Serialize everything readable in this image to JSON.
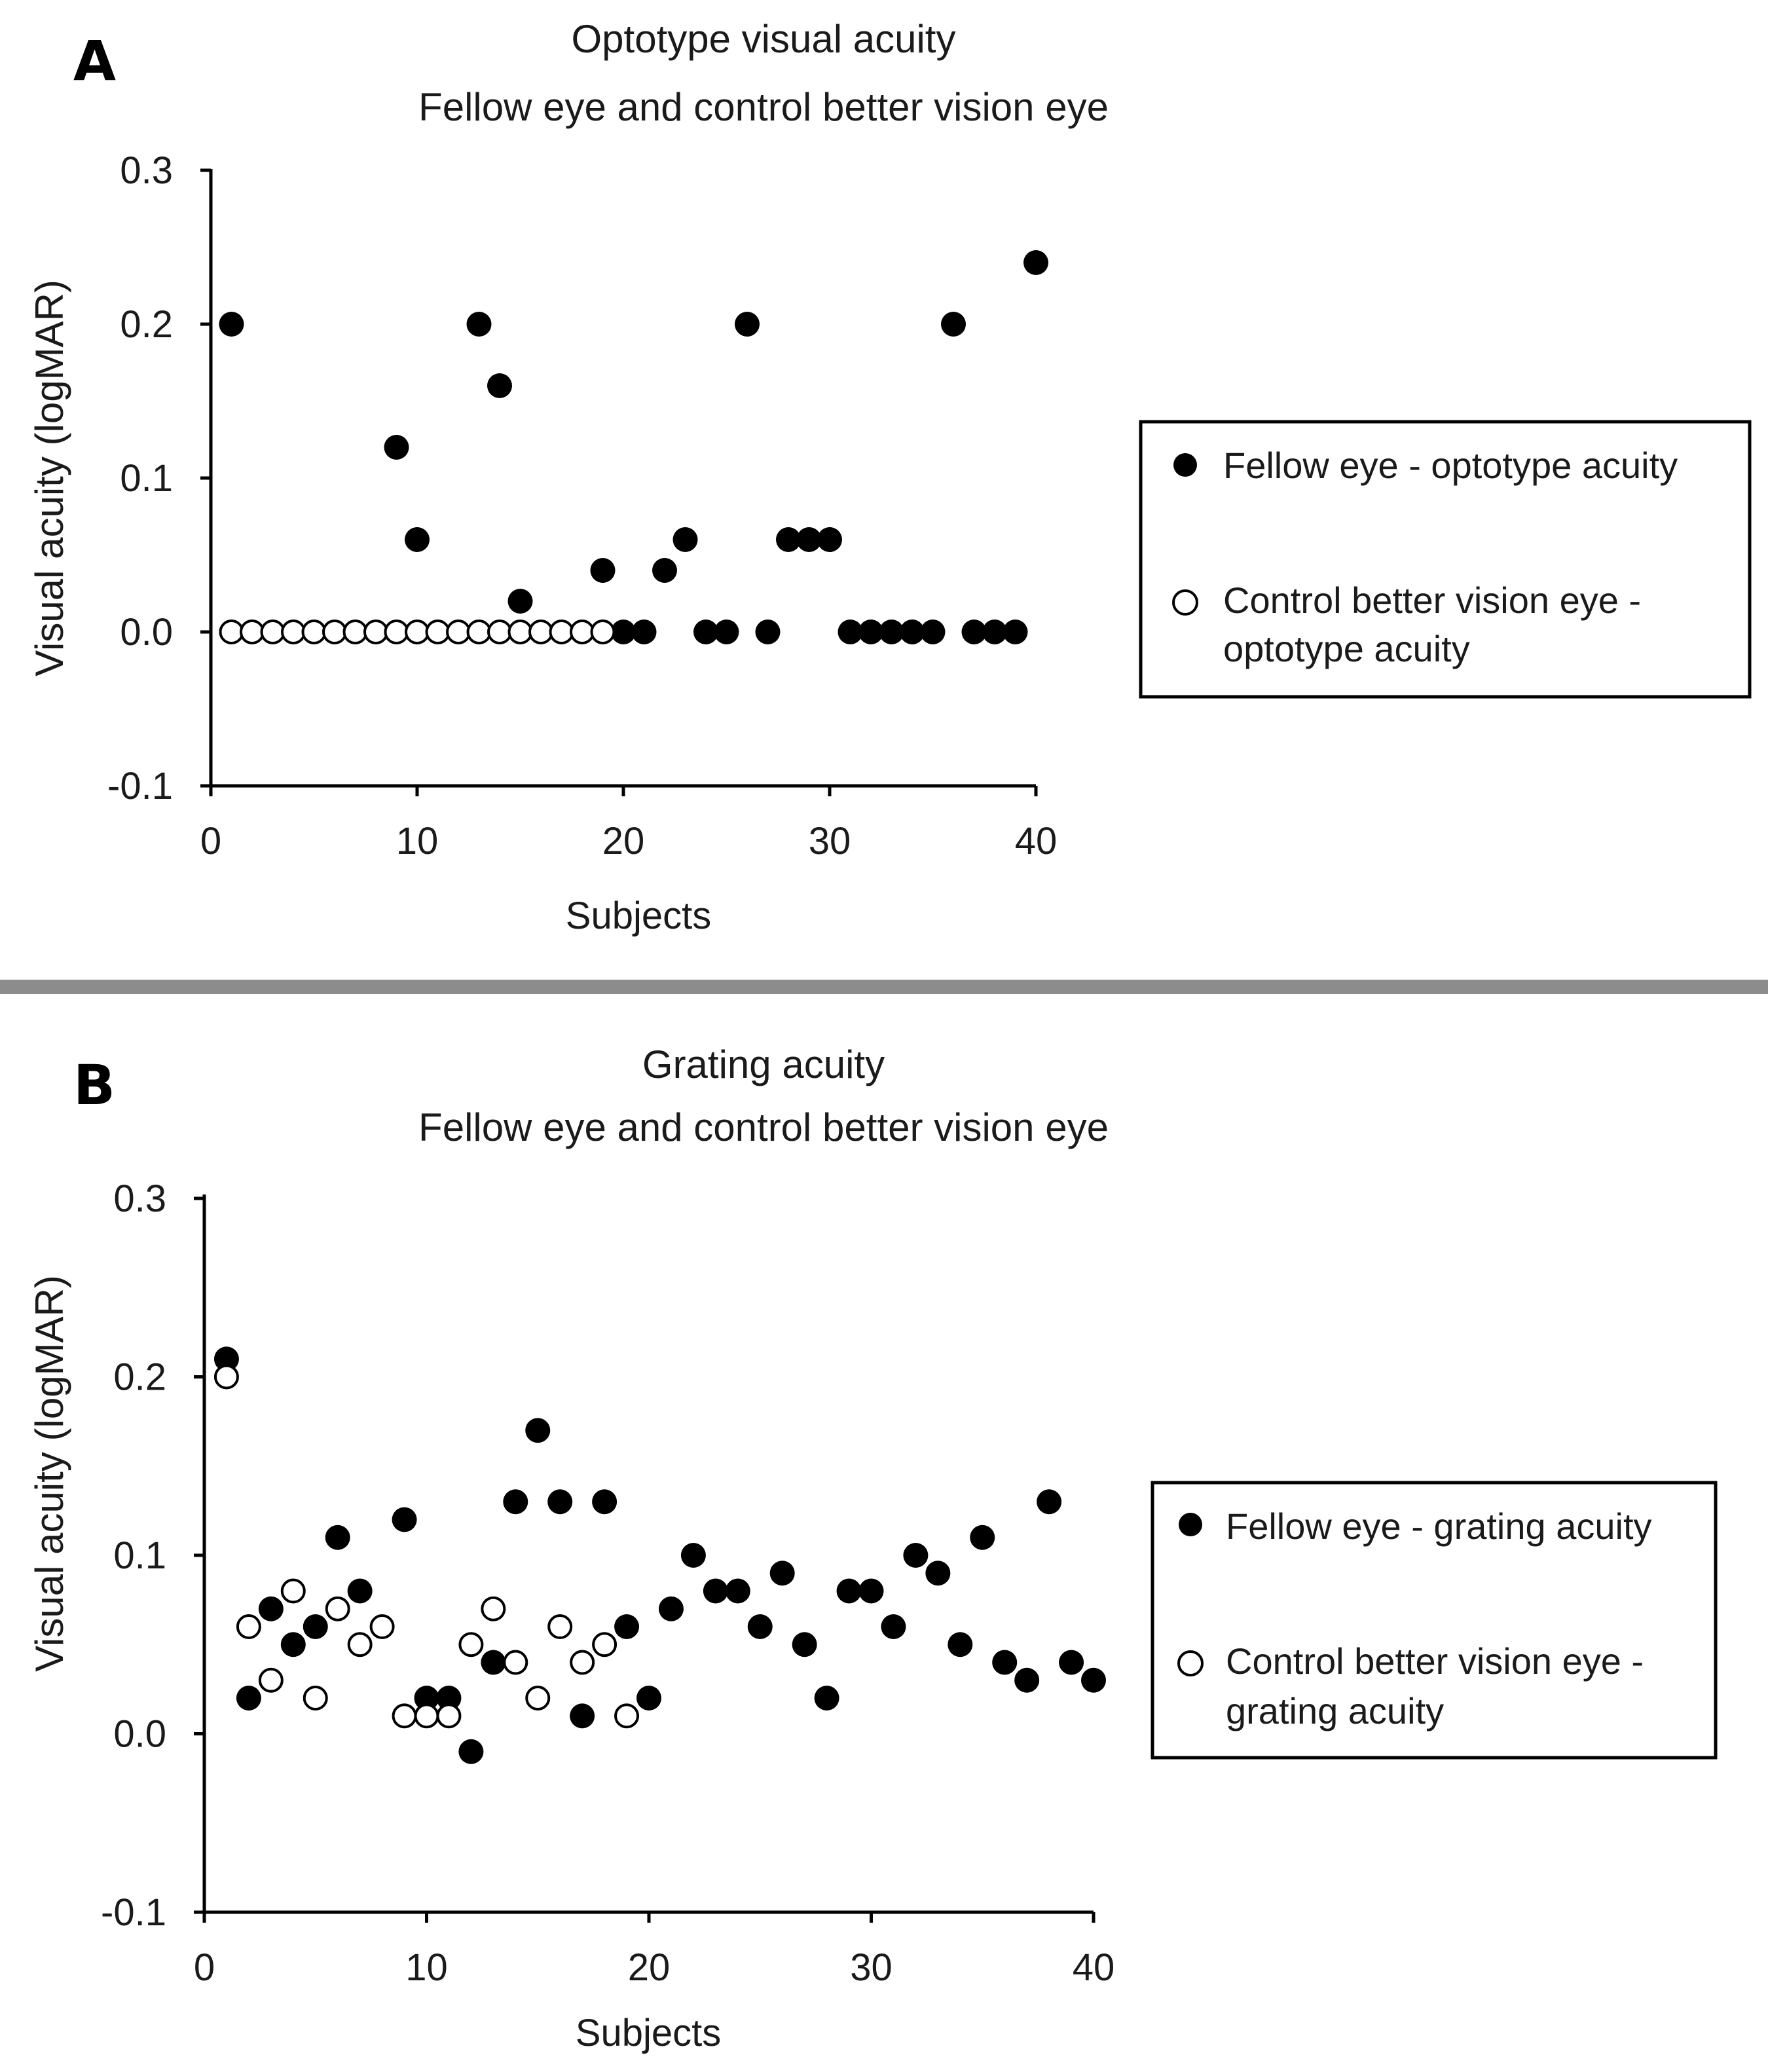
{
  "chart_data": [
    {
      "type": "scatter",
      "panel_label": "A",
      "title": "Optotype visual acuity",
      "subtitle": "Fellow eye and control better vision eye",
      "xlabel": "Subjects",
      "ylabel": "Visual acuity (logMAR)",
      "xlim": [
        0,
        40
      ],
      "ylim": [
        -0.1,
        0.3
      ],
      "xticks": [
        0,
        10,
        20,
        30,
        40
      ],
      "xtick_labels": [
        "0",
        "10",
        "20",
        "30",
        "40"
      ],
      "yticks": [
        -0.1,
        0.0,
        0.1,
        0.2,
        0.3
      ],
      "ytick_labels": [
        "-0.1",
        "0.0",
        "0.1",
        "0.2",
        "0.3"
      ],
      "legend_placement": "right",
      "series": [
        {
          "name": "Fellow eye - optotype acuity",
          "marker": "filled-circle",
          "points": [
            [
              1,
              0.2
            ],
            [
              9,
              0.12
            ],
            [
              10,
              0.06
            ],
            [
              13,
              0.2
            ],
            [
              14,
              0.16
            ],
            [
              15,
              0.02
            ],
            [
              19,
              0.04
            ],
            [
              20,
              0.0
            ],
            [
              21,
              0.0
            ],
            [
              22,
              0.04
            ],
            [
              23,
              0.06
            ],
            [
              24,
              0.0
            ],
            [
              25,
              0.0
            ],
            [
              26,
              0.2
            ],
            [
              27,
              0.0
            ],
            [
              28,
              0.06
            ],
            [
              29,
              0.06
            ],
            [
              30,
              0.06
            ],
            [
              31,
              0.0
            ],
            [
              32,
              0.0
            ],
            [
              33,
              0.0
            ],
            [
              34,
              0.0
            ],
            [
              35,
              0.0
            ],
            [
              36,
              0.2
            ],
            [
              37,
              0.0
            ],
            [
              38,
              0.0
            ],
            [
              39,
              0.0
            ],
            [
              40,
              0.24
            ]
          ]
        },
        {
          "name": "Control better vision eye -",
          "name_line2": "optotype acuity",
          "marker": "open-circle",
          "points": [
            [
              1,
              0.0
            ],
            [
              2,
              0.0
            ],
            [
              3,
              0.0
            ],
            [
              4,
              0.0
            ],
            [
              5,
              0.0
            ],
            [
              6,
              0.0
            ],
            [
              7,
              0.0
            ],
            [
              8,
              0.0
            ],
            [
              9,
              0.0
            ],
            [
              10,
              0.0
            ],
            [
              11,
              0.0
            ],
            [
              12,
              0.0
            ],
            [
              13,
              0.0
            ],
            [
              14,
              0.0
            ],
            [
              15,
              0.0
            ],
            [
              16,
              0.0
            ],
            [
              17,
              0.0
            ],
            [
              18,
              0.0
            ],
            [
              19,
              0.0
            ]
          ]
        }
      ]
    },
    {
      "type": "scatter",
      "panel_label": "B",
      "title": "Grating acuity",
      "subtitle": "Fellow eye and control better vision eye",
      "xlabel": "Subjects",
      "ylabel": "Visual acuity (logMAR)",
      "xlim": [
        0,
        40
      ],
      "ylim": [
        -0.1,
        0.3
      ],
      "xticks": [
        0,
        10,
        20,
        30,
        40
      ],
      "xtick_labels": [
        "0",
        "10",
        "20",
        "30",
        "40"
      ],
      "yticks": [
        -0.1,
        0.0,
        0.1,
        0.2,
        0.3
      ],
      "ytick_labels": [
        "-0.1",
        "0.0",
        "0.1",
        "0.2",
        "0.3"
      ],
      "legend_placement": "right",
      "series": [
        {
          "name": "Fellow eye - grating acuity",
          "marker": "filled-circle",
          "points": [
            [
              1,
              0.21
            ],
            [
              2,
              0.02
            ],
            [
              3,
              0.07
            ],
            [
              4,
              0.05
            ],
            [
              5,
              0.06
            ],
            [
              6,
              0.11
            ],
            [
              7,
              0.08
            ],
            [
              9,
              0.12
            ],
            [
              10,
              0.02
            ],
            [
              11,
              0.02
            ],
            [
              12,
              -0.01
            ],
            [
              13,
              0.04
            ],
            [
              14,
              0.13
            ],
            [
              15,
              0.17
            ],
            [
              16,
              0.13
            ],
            [
              17,
              0.01
            ],
            [
              18,
              0.13
            ],
            [
              19,
              0.06
            ],
            [
              20,
              0.02
            ],
            [
              21,
              0.07
            ],
            [
              22,
              0.1
            ],
            [
              23,
              0.08
            ],
            [
              24,
              0.08
            ],
            [
              25,
              0.06
            ],
            [
              26,
              0.09
            ],
            [
              27,
              0.05
            ],
            [
              28,
              0.02
            ],
            [
              29,
              0.08
            ],
            [
              30,
              0.08
            ],
            [
              31,
              0.06
            ],
            [
              32,
              0.1
            ],
            [
              33,
              0.09
            ],
            [
              34,
              0.05
            ],
            [
              35,
              0.11
            ],
            [
              36,
              0.04
            ],
            [
              37,
              0.03
            ],
            [
              38,
              0.13
            ],
            [
              39,
              0.04
            ],
            [
              40,
              0.03
            ]
          ]
        },
        {
          "name": "Control better vision eye -",
          "name_line2": "grating acuity",
          "marker": "open-circle",
          "points": [
            [
              1,
              0.2
            ],
            [
              2,
              0.06
            ],
            [
              3,
              0.03
            ],
            [
              4,
              0.08
            ],
            [
              5,
              0.02
            ],
            [
              6,
              0.07
            ],
            [
              7,
              0.05
            ],
            [
              8,
              0.06
            ],
            [
              9,
              0.01
            ],
            [
              10,
              0.01
            ],
            [
              11,
              0.01
            ],
            [
              12,
              0.05
            ],
            [
              13,
              0.07
            ],
            [
              14,
              0.04
            ],
            [
              15,
              0.02
            ],
            [
              16,
              0.06
            ],
            [
              17,
              0.04
            ],
            [
              18,
              0.05
            ],
            [
              19,
              0.01
            ]
          ]
        }
      ]
    }
  ]
}
